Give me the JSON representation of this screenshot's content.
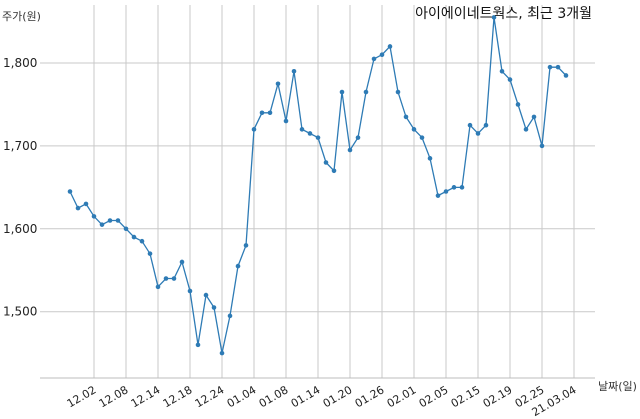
{
  "chart_data": {
    "type": "line",
    "title": "아이에이네트웍스, 최근 3개월",
    "ylabel": "주가(원)",
    "xlabel": "날짜(일)",
    "ylim": [
      1420,
      1870
    ],
    "yticks": [
      1500,
      1600,
      1700,
      1800
    ],
    "ytick_labels": [
      "1,500",
      "1,600",
      "1,700",
      "1,800"
    ],
    "grid": true,
    "line_color": "#2e7bb5",
    "xtick_labels": [
      {
        "index": 3,
        "label": "12.02"
      },
      {
        "index": 7,
        "label": "12.08"
      },
      {
        "index": 11,
        "label": "12.14"
      },
      {
        "index": 15,
        "label": "12.18"
      },
      {
        "index": 19,
        "label": "12.24"
      },
      {
        "index": 23,
        "label": "01.04"
      },
      {
        "index": 27,
        "label": "01.08"
      },
      {
        "index": 31,
        "label": "01.14"
      },
      {
        "index": 35,
        "label": "01.20"
      },
      {
        "index": 39,
        "label": "01.26"
      },
      {
        "index": 43,
        "label": "02.01"
      },
      {
        "index": 47,
        "label": "02.05"
      },
      {
        "index": 51,
        "label": "02.15"
      },
      {
        "index": 55,
        "label": "02.19"
      },
      {
        "index": 59,
        "label": "02.25"
      },
      {
        "index": 63,
        "label": "21.03.04"
      }
    ],
    "series": [
      {
        "values": [
          1645,
          1625,
          1630,
          1615,
          1605,
          1610,
          1610,
          1600,
          1590,
          1585,
          1570,
          1530,
          1540,
          1540,
          1560,
          1525,
          1460,
          1520,
          1505,
          1450,
          1495,
          1555,
          1580,
          1720,
          1740,
          1740,
          1775,
          1730,
          1790,
          1720,
          1715,
          1710,
          1680,
          1670,
          1765,
          1695,
          1710,
          1765,
          1805,
          1810,
          1820,
          1765,
          1735,
          1720,
          1710,
          1685,
          1640,
          1645,
          1650,
          1650,
          1725,
          1715,
          1725,
          1855,
          1790,
          1780,
          1750,
          1720,
          1735,
          1700,
          1795,
          1795,
          1785
        ]
      }
    ]
  }
}
